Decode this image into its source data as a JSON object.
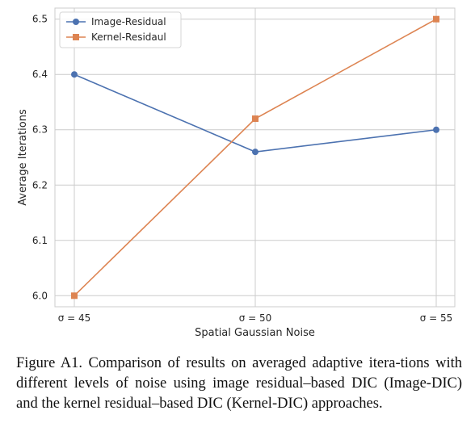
{
  "chart_data": {
    "type": "line",
    "categories": [
      "σ = 45",
      "σ = 50",
      "σ = 55"
    ],
    "xlabel": "Spatial Gaussian Noise",
    "ylabel": "Average Iterations",
    "ylim": [
      5.98,
      6.52
    ],
    "yticks": [
      6.0,
      6.1,
      6.2,
      6.3,
      6.4,
      6.5
    ],
    "ytick_labels": [
      "6.0",
      "6.1",
      "6.2",
      "6.3",
      "6.4",
      "6.5"
    ],
    "grid": true,
    "legend_position": "top-left",
    "series": [
      {
        "name": "Image-Residual",
        "values": [
          6.4,
          6.26,
          6.3
        ],
        "color": "#4c72b0",
        "marker": "circle"
      },
      {
        "name": "Kernel-Residaul",
        "values": [
          6.0,
          6.32,
          6.5
        ],
        "color": "#dd8452",
        "marker": "square"
      }
    ]
  },
  "caption": "Figure A1.  Comparison of results on averaged adaptive itera-tions with different levels of noise using image residual–based DIC (Image-DIC) and the kernel residual–based DIC (Kernel-DIC) approaches."
}
